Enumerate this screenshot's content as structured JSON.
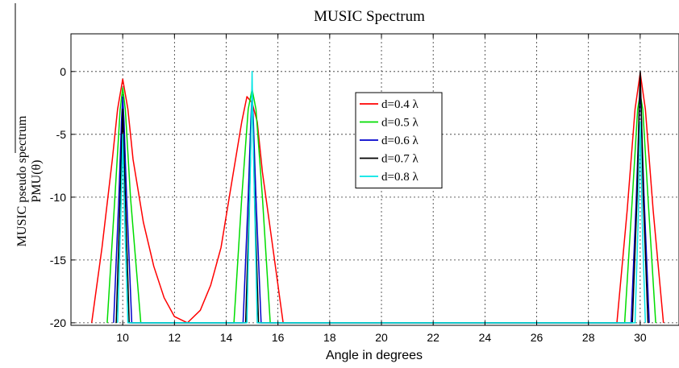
{
  "chart_data": {
    "type": "line",
    "title": "MUSIC Spectrum",
    "xlabel": "Angle in degrees",
    "ylabel_lines": [
      "MUSIC pseudo spectrum",
      "PMU(θ)"
    ],
    "xlim": [
      8,
      31.5
    ],
    "ylim": [
      -20.2,
      3
    ],
    "xticks": [
      10,
      12,
      14,
      16,
      18,
      20,
      22,
      24,
      26,
      28,
      30
    ],
    "yticks": [
      0,
      -5,
      -10,
      -15,
      -20
    ],
    "grid": true,
    "legend_position": "top-center",
    "series": [
      {
        "name": "d=0.4 λ",
        "color": "#ff0000",
        "x": [
          8.8,
          9.2,
          9.6,
          9.8,
          10.0,
          10.2,
          10.4,
          10.8,
          11.2,
          11.6,
          12.0,
          12.5,
          13.0,
          13.4,
          13.8,
          14.2,
          14.6,
          14.8,
          15.0,
          15.2,
          15.4,
          15.8,
          16.2,
          29.1,
          29.5,
          29.8,
          30.0,
          30.2,
          30.5,
          30.9
        ],
        "y": [
          -20,
          -14,
          -7,
          -3,
          -0.6,
          -3,
          -7,
          -12,
          -15.5,
          -18,
          -19.5,
          -20,
          -19,
          -17,
          -14,
          -9,
          -4,
          -2,
          -2.5,
          -4,
          -8,
          -14,
          -20,
          -20,
          -11,
          -3,
          -0.1,
          -3,
          -11,
          -20
        ]
      },
      {
        "name": "d=0.5 λ",
        "color": "#00dd00",
        "x": [
          9.4,
          9.7,
          9.9,
          10.0,
          10.1,
          10.3,
          10.7,
          14.3,
          14.6,
          14.85,
          15.0,
          15.15,
          15.4,
          15.7,
          29.4,
          29.7,
          29.9,
          30.0,
          30.1,
          30.3,
          30.6
        ],
        "y": [
          -20,
          -10,
          -3,
          -1.3,
          -3,
          -10,
          -20,
          -20,
          -10,
          -3,
          -1.4,
          -3,
          -10,
          -20,
          -20,
          -10,
          -3,
          -1.8,
          -3,
          -10,
          -20
        ]
      },
      {
        "name": "d=0.6 λ",
        "color": "#0000cc",
        "x": [
          9.65,
          9.85,
          9.95,
          10.0,
          10.05,
          10.15,
          10.35,
          14.65,
          14.85,
          14.95,
          15.0,
          15.05,
          15.15,
          15.35,
          29.65,
          29.85,
          29.95,
          30.0,
          30.05,
          30.15,
          30.35
        ],
        "y": [
          -20,
          -10,
          -4,
          -2,
          -4,
          -10,
          -20,
          -20,
          -10,
          -4,
          -1.6,
          -4,
          -10,
          -20,
          -20,
          -10,
          -4,
          -1,
          -4,
          -10,
          -20
        ]
      },
      {
        "name": "d=0.7 λ",
        "color": "#000000",
        "x": [
          9.75,
          9.9,
          9.97,
          10.0,
          10.03,
          10.1,
          10.25,
          14.75,
          14.9,
          14.97,
          15.0,
          15.03,
          15.1,
          15.25,
          29.7,
          29.88,
          29.96,
          30.0,
          30.04,
          30.12,
          30.3
        ],
        "y": [
          -20,
          -10,
          -5,
          -3,
          -5,
          -10,
          -20,
          -20,
          -10,
          -4,
          -2,
          -4,
          -10,
          -20,
          -20,
          -10,
          -3,
          0,
          -3,
          -10,
          -20
        ]
      },
      {
        "name": "d=0.8 λ",
        "color": "#00e5e5",
        "x": [
          9.8,
          9.92,
          9.98,
          10.0,
          10.02,
          10.08,
          10.2,
          14.8,
          14.92,
          14.98,
          15.0,
          15.02,
          15.08,
          15.2,
          29.8,
          29.92,
          29.98,
          30.0,
          30.02,
          30.08,
          30.2
        ],
        "y": [
          -20,
          -12,
          -7,
          -5,
          -7,
          -12,
          -20,
          -20,
          -9,
          -3,
          0,
          -3,
          -9,
          -20,
          -20,
          -12,
          -6,
          -4,
          -6,
          -12,
          -20
        ]
      }
    ]
  }
}
